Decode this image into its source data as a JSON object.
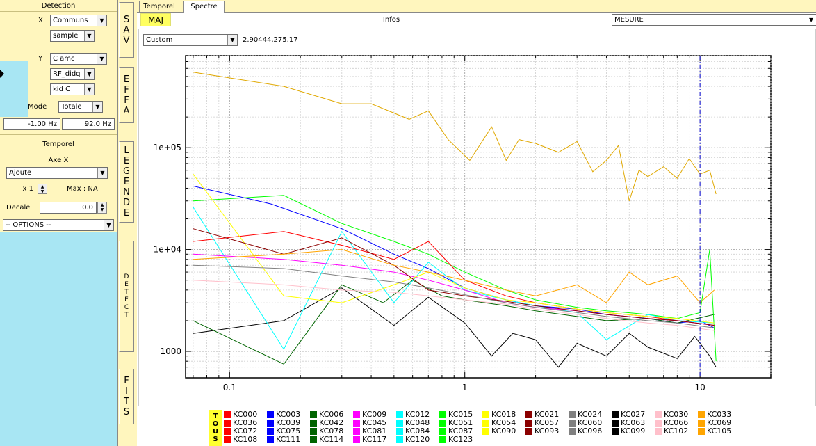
{
  "detection": {
    "title": "Detection",
    "x_label": "X",
    "x_select": "Communs",
    "x_sub_select": "sample",
    "y_label": "Y",
    "y_select": "C amc",
    "y_sub_select": "RF_didq",
    "y_kid_select": "kid C",
    "mode_label": "Mode",
    "mode_select": "Totale",
    "freq_min": "-1.00 Hz",
    "freq_max": "92.0 Hz"
  },
  "temporel": {
    "title": "Temporel",
    "axe_x_label": "Axe X",
    "axe_x_select": "Ajoute",
    "multiplier": "x 1",
    "max_text": "Max : NA",
    "decale_label": "Decale",
    "decale_value": "0.0",
    "options_select": "-- OPTIONS --"
  },
  "side_buttons": [
    "SAV",
    "EFFA",
    "LEGENDE",
    "DETECT",
    "FITS"
  ],
  "tabs": [
    "Temporel",
    "Spectre"
  ],
  "toolbar": {
    "maj_label": "MAJ",
    "infos_label": "Infos",
    "mesure_select": "MESURE"
  },
  "plot": {
    "view_select": "Custom",
    "coords": "2.90444,275.17"
  },
  "legend": {
    "all_label": "TOUS",
    "columns": [
      {
        "color": "#ff0000",
        "items": [
          "KC000",
          "KC036",
          "KC072",
          "KC108"
        ]
      },
      {
        "color": "#0000ff",
        "items": [
          "KC003",
          "KC039",
          "KC075",
          "KC111"
        ]
      },
      {
        "color": "#006400",
        "items": [
          "KC006",
          "KC042",
          "KC078",
          "KC114"
        ]
      },
      {
        "color": "#ff00ff",
        "items": [
          "KC009",
          "KC045",
          "KC081",
          "KC117"
        ]
      },
      {
        "color": "#00ffff",
        "items": [
          "KC012",
          "KC048",
          "KC084",
          "KC120"
        ]
      },
      {
        "color": "#00ff00",
        "items": [
          "KC015",
          "KC051",
          "KC087",
          "KC123"
        ]
      },
      {
        "color": "#ffff00",
        "items": [
          "KC018",
          "KC054",
          "KC090"
        ]
      },
      {
        "color": "#8b0000",
        "items": [
          "KC021",
          "KC057",
          "KC093"
        ]
      },
      {
        "color": "#808080",
        "items": [
          "KC024",
          "KC060",
          "KC096"
        ]
      },
      {
        "color": "#000000",
        "items": [
          "KC027",
          "KC063",
          "KC099"
        ]
      },
      {
        "color": "#ffc0cb",
        "items": [
          "KC030",
          "KC066",
          "KC102"
        ]
      },
      {
        "color": "#ffa500",
        "items": [
          "KC033",
          "KC069",
          "KC105"
        ]
      }
    ]
  },
  "chart_data": {
    "type": "line",
    "title": "",
    "xlabel": "",
    "ylabel": "",
    "xscale": "log",
    "yscale": "log",
    "xlim": [
      0.065,
      20
    ],
    "ylim": [
      550,
      800000
    ],
    "x_ticks": [
      "0.1",
      "1",
      "10"
    ],
    "y_ticks": [
      "1000",
      "1e+04",
      "1e+05"
    ],
    "grid": true,
    "marker_line_x": 10,
    "series": [
      {
        "color": "#e0a800",
        "x": [
          0.07,
          0.17,
          0.3,
          0.4,
          0.58,
          0.7,
          0.85,
          1.05,
          1.3,
          1.5,
          1.7,
          2.0,
          2.5,
          3.0,
          3.5,
          4.0,
          4.5,
          5.0,
          5.5,
          6.0,
          7.0,
          8.0,
          9.0,
          10.0,
          11.0,
          11.7
        ],
        "y": [
          550000,
          400000,
          270000,
          270000,
          190000,
          230000,
          120000,
          75000,
          160000,
          75000,
          120000,
          110000,
          90000,
          115000,
          58000,
          75000,
          105000,
          30000,
          60000,
          52000,
          65000,
          50000,
          78000,
          55000,
          60000,
          35000
        ]
      },
      {
        "color": "#0000ff",
        "x": [
          0.07,
          0.15,
          0.3,
          0.5,
          0.7,
          1.0,
          1.5,
          2.0,
          3.0,
          4.0,
          6.0,
          8.0,
          10.0,
          11.5
        ],
        "y": [
          42000,
          28000,
          16000,
          9000,
          6500,
          4200,
          3200,
          2800,
          2600,
          2300,
          2100,
          1900,
          2000,
          1700
        ]
      },
      {
        "color": "#000000",
        "x": [
          0.07,
          0.17,
          0.3,
          0.5,
          0.7,
          1.0,
          1.3,
          1.6,
          2.0,
          2.5,
          3.0,
          4.0,
          5.0,
          6.0,
          8.0,
          9.5,
          11.0,
          11.7
        ],
        "y": [
          1500,
          2000,
          4200,
          1800,
          3400,
          1900,
          900,
          1500,
          1300,
          700,
          1200,
          900,
          1500,
          1100,
          850,
          1400,
          900,
          700
        ]
      },
      {
        "color": "#006400",
        "x": [
          0.07,
          0.17,
          0.3,
          0.45,
          0.6,
          0.8,
          1.0,
          1.5,
          2.0,
          3.0,
          4.0,
          6.0,
          8.0,
          11.5
        ],
        "y": [
          2000,
          750,
          4500,
          3000,
          5000,
          3500,
          3200,
          2800,
          2500,
          2200,
          2000,
          2100,
          1900,
          2300
        ]
      },
      {
        "color": "#00ff00",
        "x": [
          0.07,
          0.17,
          0.3,
          0.5,
          0.7,
          1.0,
          1.5,
          2.0,
          3.0,
          4.0,
          6.0,
          8.0,
          10.0,
          11.0,
          11.7
        ],
        "y": [
          30000,
          34000,
          18000,
          12000,
          9000,
          6000,
          4000,
          3200,
          2700,
          2500,
          2300,
          2100,
          2400,
          10000,
          800
        ]
      },
      {
        "color": "#00ffff",
        "x": [
          0.07,
          0.17,
          0.3,
          0.5,
          0.7,
          1.0,
          1.5,
          2.0,
          3.0,
          4.0,
          6.0,
          8.0,
          11.5
        ],
        "y": [
          26000,
          1050,
          15000,
          3000,
          7500,
          4000,
          3200,
          2800,
          2400,
          1300,
          2300,
          2000,
          1900
        ]
      },
      {
        "color": "#ff0000",
        "x": [
          0.07,
          0.17,
          0.3,
          0.5,
          0.7,
          1.0,
          1.5,
          2.0,
          3.0,
          4.0,
          6.0,
          8.0,
          11.5
        ],
        "y": [
          12000,
          15000,
          11000,
          8000,
          12000,
          5000,
          3500,
          3000,
          2600,
          2400,
          2200,
          2000,
          1800
        ]
      },
      {
        "color": "#ff00ff",
        "x": [
          0.07,
          0.17,
          0.3,
          0.5,
          0.7,
          1.0,
          1.5,
          2.0,
          3.0,
          4.0,
          6.0,
          8.0,
          11.5
        ],
        "y": [
          9000,
          8000,
          7000,
          6000,
          5000,
          4000,
          3000,
          2700,
          2500,
          2300,
          2100,
          2000,
          1800
        ]
      },
      {
        "color": "#ffff00",
        "x": [
          0.07,
          0.17,
          0.3,
          0.5,
          0.7,
          1.0,
          1.5,
          2.0,
          3.0,
          4.0,
          6.0,
          8.0,
          11.5
        ],
        "y": [
          55000,
          3500,
          3000,
          4500,
          6000,
          4200,
          3200,
          3000,
          2600,
          2400,
          2200,
          2100,
          1900
        ]
      },
      {
        "color": "#8b0000",
        "x": [
          0.07,
          0.17,
          0.3,
          0.5,
          0.7,
          1.0,
          1.5,
          2.0,
          3.0,
          4.0,
          6.0,
          8.0,
          11.5
        ],
        "y": [
          16000,
          9000,
          13000,
          7000,
          4000,
          3500,
          3100,
          2800,
          2500,
          2300,
          2100,
          2000,
          1800
        ]
      },
      {
        "color": "#808080",
        "x": [
          0.07,
          0.17,
          0.3,
          0.5,
          0.7,
          1.0,
          1.5,
          2.0,
          3.0,
          4.0,
          6.0,
          8.0,
          11.5
        ],
        "y": [
          7000,
          6500,
          5500,
          4800,
          4200,
          3600,
          3000,
          2700,
          2400,
          2200,
          2000,
          1900,
          1700
        ]
      },
      {
        "color": "#ffc0cb",
        "x": [
          0.07,
          0.17,
          0.3,
          0.5,
          0.7,
          1.0,
          1.5,
          2.0,
          3.0,
          4.0,
          6.0,
          8.0,
          11.5
        ],
        "y": [
          5000,
          4500,
          4000,
          3800,
          3500,
          3200,
          2900,
          2600,
          2300,
          2100,
          1900,
          1800,
          1600
        ]
      },
      {
        "color": "#ffa500",
        "x": [
          0.07,
          0.17,
          0.3,
          0.5,
          0.7,
          1.0,
          1.5,
          2.0,
          3.0,
          4.0,
          5.0,
          6.0,
          8.0,
          10.0,
          11.5
        ],
        "y": [
          8000,
          9000,
          10000,
          7000,
          6000,
          5000,
          4000,
          3500,
          4500,
          3000,
          6000,
          4500,
          5500,
          3000,
          4000
        ]
      }
    ]
  }
}
